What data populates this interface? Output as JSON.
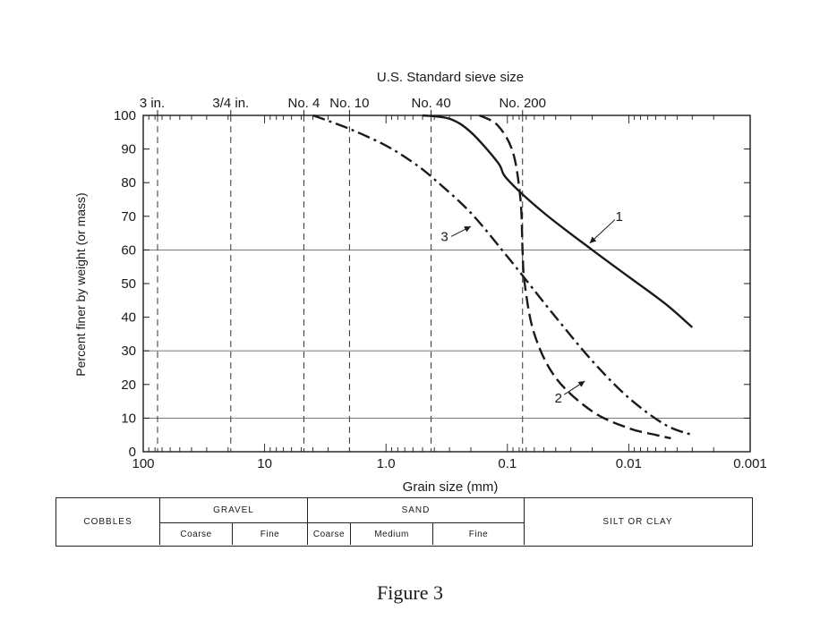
{
  "chart_data": {
    "type": "line",
    "top_axis_title": "U.S. Standard sieve size",
    "sieves": [
      {
        "label": "3 in.",
        "size_mm": 76.2
      },
      {
        "label": "3/4 in.",
        "size_mm": 19.0
      },
      {
        "label": "No. 4",
        "size_mm": 4.75
      },
      {
        "label": "No. 10",
        "size_mm": 2.0
      },
      {
        "label": "No. 40",
        "size_mm": 0.425
      },
      {
        "label": "No. 200",
        "size_mm": 0.075
      }
    ],
    "xlabel": "Grain size (mm)",
    "ylabel": "Percent finer by weight (or mass)",
    "x_scale": "log",
    "x_reversed": true,
    "xlim": [
      100,
      0.001
    ],
    "ylim": [
      0,
      100
    ],
    "x_ticks": [
      {
        "value": 100,
        "label": "100"
      },
      {
        "value": 10,
        "label": "10"
      },
      {
        "value": 1,
        "label": "1.0"
      },
      {
        "value": 0.1,
        "label": "0.1"
      },
      {
        "value": 0.01,
        "label": "0.01"
      },
      {
        "value": 0.001,
        "label": "0.001"
      }
    ],
    "y_ticks": [
      0,
      10,
      20,
      30,
      40,
      50,
      60,
      70,
      80,
      90,
      100
    ],
    "grid_y": [
      10,
      30,
      60
    ],
    "series": [
      {
        "name": "1",
        "style": "solid",
        "color": "#1a1a1a",
        "points": [
          [
            0.5,
            100
          ],
          [
            0.3,
            99
          ],
          [
            0.2,
            95
          ],
          [
            0.12,
            86
          ],
          [
            0.1,
            81
          ],
          [
            0.05,
            71
          ],
          [
            0.02,
            60
          ],
          [
            0.01,
            52
          ],
          [
            0.005,
            44
          ],
          [
            0.003,
            37
          ]
        ]
      },
      {
        "name": "2",
        "style": "dashed",
        "color": "#1a1a1a",
        "points": [
          [
            0.17,
            100
          ],
          [
            0.12,
            97
          ],
          [
            0.09,
            89
          ],
          [
            0.078,
            75
          ],
          [
            0.075,
            60
          ],
          [
            0.072,
            50
          ],
          [
            0.06,
            35
          ],
          [
            0.04,
            22
          ],
          [
            0.02,
            12
          ],
          [
            0.01,
            7
          ],
          [
            0.006,
            5
          ],
          [
            0.0045,
            4
          ]
        ]
      },
      {
        "name": "3",
        "style": "dash-dot",
        "color": "#1a1a1a",
        "points": [
          [
            4.0,
            100
          ],
          [
            2.0,
            96
          ],
          [
            1.0,
            91
          ],
          [
            0.6,
            86
          ],
          [
            0.4,
            81
          ],
          [
            0.2,
            71
          ],
          [
            0.1,
            58
          ],
          [
            0.07,
            51
          ],
          [
            0.04,
            40
          ],
          [
            0.02,
            27
          ],
          [
            0.01,
            16
          ],
          [
            0.005,
            8
          ],
          [
            0.003,
            5
          ]
        ]
      }
    ],
    "series_labels": [
      {
        "text": "1",
        "x": 0.012,
        "y": 70
      },
      {
        "text": "2",
        "x": 0.038,
        "y": 16
      },
      {
        "text": "3",
        "x": 0.33,
        "y": 64
      }
    ]
  },
  "classification": {
    "cobbles": "COBBLES",
    "gravel": "GRAVEL",
    "gravel_coarse": "Coarse",
    "gravel_fine": "Fine",
    "sand": "SAND",
    "sand_coarse": "Coarse",
    "sand_medium": "Medium",
    "sand_fine": "Fine",
    "silt_clay": "SILT OR CLAY"
  },
  "caption": "Figure 3"
}
